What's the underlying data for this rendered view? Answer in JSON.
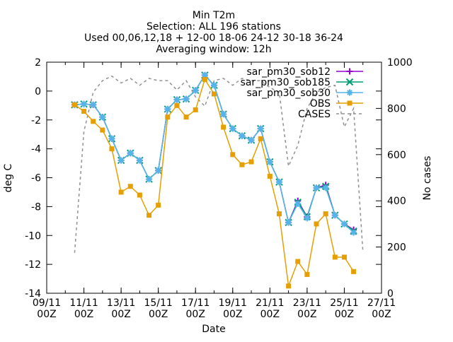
{
  "chart_data": {
    "type": "line",
    "title_lines": [
      "Min T2m",
      "Selection: ALL     196 stations",
      "Used 00,06,12,18 + 12-00 18-06 24-12 30-18 36-24",
      "Averaging window: 12h"
    ],
    "xlabel": "Date",
    "ylabel": "deg C",
    "y2label": "No cases",
    "xlim_days": [
      9,
      27
    ],
    "ylim": [
      -14,
      2
    ],
    "y2lim": [
      0,
      1000
    ],
    "x_ticks": [
      {
        "day": 9,
        "line1": "09/11",
        "line2": "00Z"
      },
      {
        "day": 11,
        "line1": "11/11",
        "line2": "00Z"
      },
      {
        "day": 13,
        "line1": "13/11",
        "line2": "00Z"
      },
      {
        "day": 15,
        "line1": "15/11",
        "line2": "00Z"
      },
      {
        "day": 17,
        "line1": "17/11",
        "line2": "00Z"
      },
      {
        "day": 19,
        "line1": "19/11",
        "line2": "00Z"
      },
      {
        "day": 21,
        "line1": "21/11",
        "line2": "00Z"
      },
      {
        "day": 23,
        "line1": "23/11",
        "line2": "00Z"
      },
      {
        "day": 25,
        "line1": "25/11",
        "line2": "00Z"
      },
      {
        "day": 27,
        "line1": "27/11",
        "line2": "00Z"
      }
    ],
    "y_ticks": [
      2,
      0,
      -2,
      -4,
      -6,
      -8,
      -10,
      -12,
      -14
    ],
    "y2_ticks": [
      1000,
      800,
      600,
      400,
      200,
      0
    ],
    "x": [
      10.5,
      11,
      11.5,
      12,
      12.5,
      13,
      13.5,
      14,
      14.5,
      15,
      15.5,
      16,
      16.5,
      17,
      17.5,
      18,
      18.5,
      19,
      19.5,
      20,
      20.5,
      21,
      21.5,
      22,
      22.5,
      23,
      23.5,
      24,
      24.5,
      25,
      25.5,
      26
    ],
    "series": [
      {
        "name": "sar_pm30_sob12",
        "axis": "y",
        "color": "#9400d3",
        "marker": "plus",
        "values": [
          -0.95,
          -0.9,
          -0.95,
          -1.8,
          -3.3,
          -4.8,
          -4.3,
          -4.8,
          -6.1,
          -5.5,
          -1.25,
          -0.6,
          -0.55,
          0.05,
          1.1,
          0.4,
          -1.6,
          -2.6,
          -3.1,
          -3.4,
          -2.6,
          -4.9,
          -6.3,
          -9.1,
          -7.6,
          -8.7,
          -6.7,
          -6.5,
          -8.6,
          -9.2,
          -9.6,
          null
        ]
      },
      {
        "name": "sar_pm30_sob185",
        "axis": "y",
        "color": "#009e73",
        "marker": "x",
        "values": [
          -0.95,
          -0.9,
          -0.95,
          -1.8,
          -3.3,
          -4.8,
          -4.3,
          -4.8,
          -6.1,
          -5.5,
          -1.25,
          -0.6,
          -0.55,
          0.05,
          1.1,
          0.4,
          -1.6,
          -2.6,
          -3.1,
          -3.4,
          -2.6,
          -4.9,
          -6.3,
          -9.1,
          -7.7,
          -8.7,
          -6.7,
          -6.6,
          -8.6,
          -9.2,
          -9.7,
          null
        ]
      },
      {
        "name": "sar_pm30_sob30",
        "axis": "y",
        "color": "#56b4e9",
        "marker": "star",
        "values": [
          -0.95,
          -0.9,
          -0.95,
          -1.8,
          -3.3,
          -4.8,
          -4.3,
          -4.8,
          -6.1,
          -5.5,
          -1.25,
          -0.6,
          -0.55,
          0.05,
          1.1,
          0.4,
          -1.6,
          -2.6,
          -3.1,
          -3.4,
          -2.6,
          -4.9,
          -6.3,
          -9.1,
          -7.8,
          -8.8,
          -6.7,
          -6.7,
          -8.6,
          -9.2,
          -9.8,
          null
        ]
      },
      {
        "name": "OBS",
        "axis": "y",
        "color": "#e69f00",
        "marker": "box",
        "values": [
          -0.95,
          -1.4,
          -2.1,
          -2.7,
          -4.0,
          -7.0,
          -6.6,
          -7.2,
          -8.6,
          -7.9,
          -1.8,
          -1.0,
          -1.8,
          -1.3,
          0.8,
          -0.2,
          -2.5,
          -4.4,
          -5.1,
          -4.9,
          -3.3,
          -5.9,
          -8.5,
          -13.5,
          -11.8,
          -12.7,
          -9.2,
          -8.5,
          -11.5,
          -11.5,
          -12.5,
          null
        ]
      },
      {
        "name": "CASES",
        "axis": "y2",
        "color": "#909090",
        "marker": "none",
        "dash": true,
        "values": [
          175,
          700,
          870,
          920,
          940,
          910,
          930,
          900,
          930,
          920,
          920,
          880,
          920,
          850,
          810,
          920,
          930,
          900,
          930,
          920,
          920,
          890,
          870,
          550,
          640,
          800,
          870,
          890,
          900,
          720,
          800,
          180
        ]
      }
    ],
    "legend_position": "top-right"
  }
}
